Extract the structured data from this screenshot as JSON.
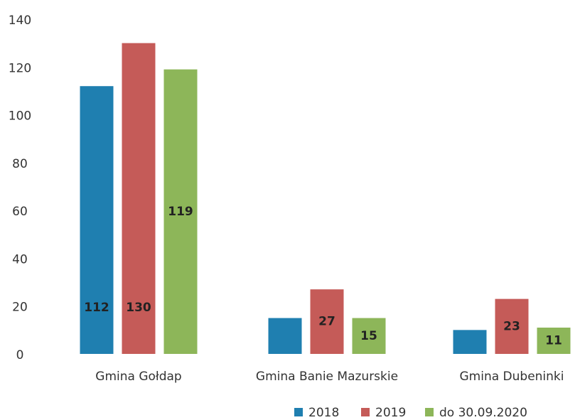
{
  "chart_data": {
    "type": "bar",
    "categories": [
      "Gmina Gołdap",
      "Gmina Banie Mazurskie",
      "Gmina Dubeninki"
    ],
    "series": [
      {
        "name": "2018",
        "color": "#1f7fb0",
        "values": [
          112,
          15,
          10
        ],
        "value_labels": [
          "112",
          null,
          null
        ]
      },
      {
        "name": "2019",
        "color": "#c55b58",
        "values": [
          130,
          27,
          23
        ],
        "value_labels": [
          "130",
          "27",
          "23"
        ]
      },
      {
        "name": "do 30.09.2020",
        "color": "#8db659",
        "values": [
          119,
          15,
          11
        ],
        "value_labels": [
          "119",
          "15",
          "11"
        ]
      }
    ],
    "ylim": [
      0,
      140
    ],
    "yticks": [
      0,
      20,
      40,
      60,
      80,
      100,
      120,
      140
    ],
    "legend": "bottom-right"
  }
}
